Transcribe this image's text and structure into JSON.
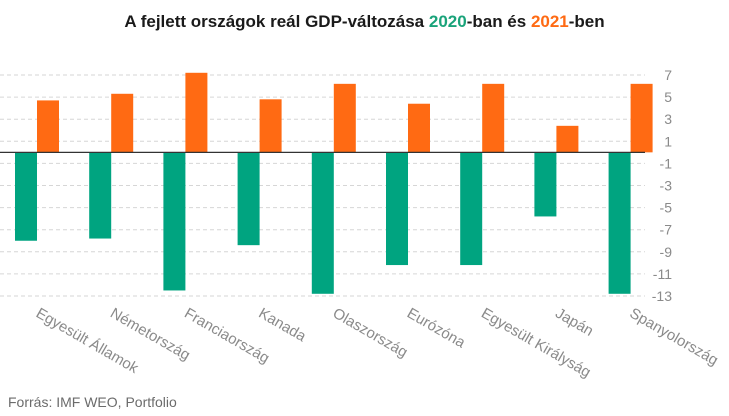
{
  "chart_data": {
    "type": "bar",
    "title_parts": [
      "A fejlett országok reál GDP-változása ",
      "2020",
      "-ban és ",
      "2021",
      "-ben"
    ],
    "categories": [
      "Egyesült Államok",
      "Németország",
      "Franciaország",
      "Kanada",
      "Olaszország",
      "Eurózóna",
      "Egyesült Királyság",
      "Japán",
      "Spanyolország"
    ],
    "series": [
      {
        "name": "2020",
        "color": "#00a480",
        "values": [
          -8.0,
          -7.8,
          -12.5,
          -8.4,
          -12.8,
          -10.2,
          -10.2,
          -5.8,
          -12.8
        ]
      },
      {
        "name": "2021",
        "color": "#ff6a13",
        "values": [
          4.7,
          5.3,
          7.2,
          4.8,
          6.2,
          4.4,
          6.2,
          2.4,
          6.2
        ]
      }
    ],
    "yticks": [
      "7",
      "5",
      "3",
      "1",
      "-1",
      "-3",
      "-5",
      "-7",
      "-9",
      "-11",
      "-13"
    ],
    "ylim": [
      -13,
      7
    ],
    "y_axis_position": "right",
    "grid": "horizontal dashed",
    "legend": "none (colors encoded in title)",
    "colors": {
      "title_2020": "#1aa37a",
      "title_2021": "#ff6a13",
      "grid": "#d6d6d6",
      "zero_line": "#333333",
      "label": "#8a8a8a"
    }
  },
  "source": "Forrás: IMF WEO, Portfolio"
}
